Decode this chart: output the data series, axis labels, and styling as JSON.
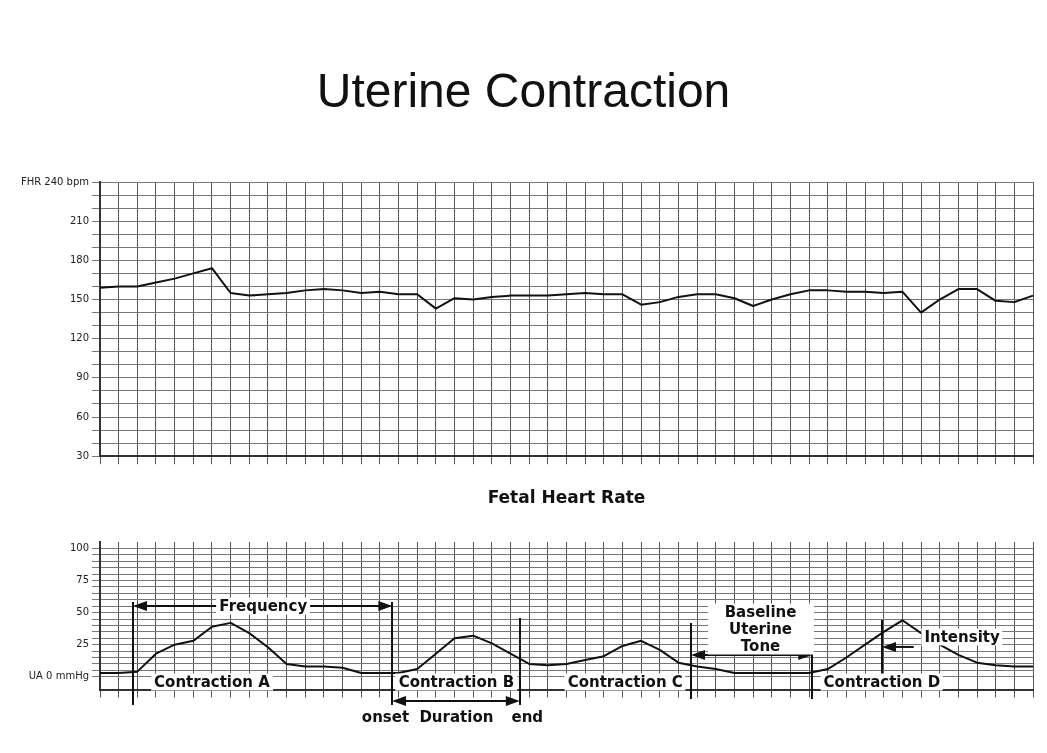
{
  "chart_data": [
    {
      "type": "line",
      "title": "Uterine Contraction",
      "xlabel": "Fetal Heart Rate",
      "categories": [
        null,
        null,
        null,
        null,
        null,
        null,
        null,
        null,
        null,
        null,
        null,
        null,
        null,
        null,
        null,
        null,
        null,
        null,
        null,
        null,
        null,
        null,
        null,
        null,
        null,
        null,
        null,
        null,
        null,
        null,
        null,
        null,
        null,
        null,
        null,
        null,
        null,
        null,
        null,
        null,
        null,
        null,
        null,
        null,
        null,
        null,
        null,
        null,
        null,
        null,
        null
      ],
      "series": [
        {
          "color": "#111111",
          "values": [
            159,
            160,
            160,
            163,
            166,
            170,
            174,
            155,
            153,
            154,
            155,
            157,
            158,
            157,
            155,
            156,
            154,
            154,
            143,
            151,
            150,
            152,
            153,
            153,
            153,
            154,
            155,
            154,
            154,
            146,
            148,
            152,
            154,
            154,
            151,
            145,
            150,
            154,
            157,
            157,
            156,
            156,
            155,
            156,
            140,
            150,
            158,
            158,
            149,
            148,
            153
          ]
        }
      ],
      "ylim": [
        30,
        240
      ],
      "yticks": [
        30,
        {
          "value": 40,
          "label": null
        },
        {
          "value": 50,
          "label": null
        },
        60,
        {
          "value": 70,
          "label": null
        },
        {
          "value": 80,
          "label": null
        },
        90,
        {
          "value": 100,
          "label": null
        },
        {
          "value": 110,
          "label": null
        },
        120,
        {
          "value": 130,
          "label": null
        },
        {
          "value": 140,
          "label": null
        },
        150,
        {
          "value": 160,
          "label": null
        },
        {
          "value": 170,
          "label": null
        },
        180,
        {
          "value": 190,
          "label": null
        },
        {
          "value": 200,
          "label": null
        },
        210,
        {
          "value": 220,
          "label": null
        },
        {
          "value": 230,
          "label": null
        },
        {
          "value": 240,
          "label": "FHR 240 bpm"
        }
      ],
      "grid": true,
      "legend": false,
      "marker": "none"
    },
    {
      "type": "line",
      "categories": [
        null,
        null,
        null,
        null,
        null,
        null,
        null,
        null,
        null,
        null,
        null,
        null,
        null,
        null,
        null,
        null,
        null,
        null,
        null,
        null,
        null,
        null,
        null,
        null,
        null,
        null,
        null,
        null,
        null,
        null,
        null,
        null,
        null,
        null,
        null,
        null,
        null,
        null,
        null,
        null,
        null,
        null,
        null,
        null,
        null,
        null,
        null,
        null,
        null,
        null,
        null
      ],
      "series": [
        {
          "color": "#111111",
          "values": [
            3,
            3,
            4,
            18,
            25,
            28,
            39,
            42,
            34,
            23,
            10,
            8,
            8,
            7,
            3,
            3,
            3,
            6,
            18,
            30,
            32,
            26,
            18,
            10,
            9,
            10,
            13,
            16,
            24,
            28,
            21,
            11,
            8,
            6,
            3,
            3,
            3,
            3,
            3,
            6,
            15,
            25,
            35,
            44,
            34,
            25,
            17,
            11,
            9,
            8,
            8
          ]
        }
      ],
      "ylim": [
        -10,
        105
      ],
      "yticks": [
        {
          "value": 0,
          "label": "UA 0 mmHg"
        },
        {
          "value": 5,
          "label": null
        },
        {
          "value": 10,
          "label": null
        },
        {
          "value": 15,
          "label": null
        },
        {
          "value": 20,
          "label": null
        },
        25,
        {
          "value": 30,
          "label": null
        },
        {
          "value": 35,
          "label": null
        },
        {
          "value": 40,
          "label": null
        },
        {
          "value": 45,
          "label": null
        },
        50,
        {
          "value": 55,
          "label": null
        },
        {
          "value": 60,
          "label": null
        },
        {
          "value": 65,
          "label": null
        },
        {
          "value": 70,
          "label": null
        },
        75,
        {
          "value": 80,
          "label": null
        },
        {
          "value": 85,
          "label": null
        },
        {
          "value": 90,
          "label": null
        },
        {
          "value": 95,
          "label": null
        },
        100
      ],
      "grid": true,
      "legend": false,
      "marker": "none",
      "annotations": [
        "Frequency",
        "Contraction A",
        "Contraction B",
        "Contraction C",
        "Contraction D",
        "onset",
        "Duration",
        "end",
        "Baseline Uterine Tone",
        "Intensity"
      ]
    }
  ]
}
